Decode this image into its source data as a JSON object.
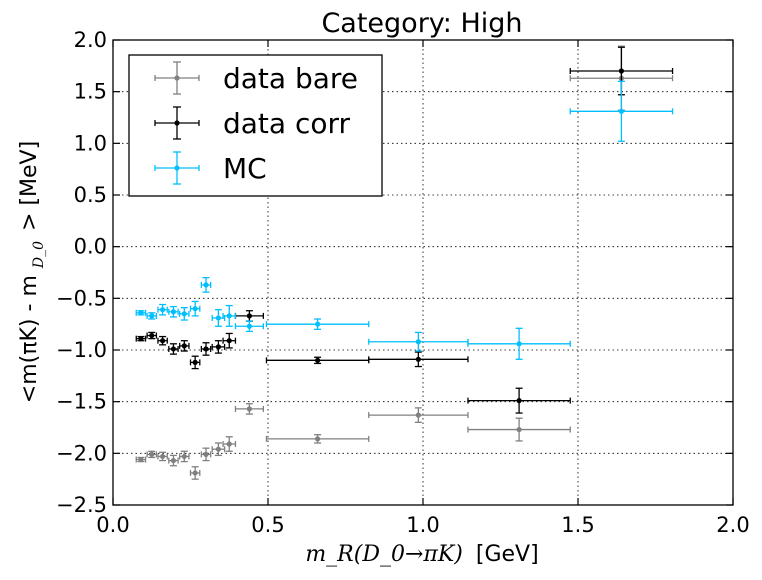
{
  "chart_data": {
    "type": "scatter",
    "title": "Category: High",
    "xlabel_math": "m_R(D_0→πK)",
    "xlabel_unit": "[GeV]",
    "ylabel_prefix": "<m(πK) - m",
    "ylabel_sub": "D_0",
    "ylabel_suffix": "> [MeV]",
    "xlim": [
      0.0,
      2.0
    ],
    "ylim": [
      -2.5,
      2.0
    ],
    "xticks": [
      0.0,
      0.5,
      1.0,
      1.5,
      2.0
    ],
    "xtick_labels": [
      "0.0",
      "0.5",
      "1.0",
      "1.5",
      "2.0"
    ],
    "yticks": [
      -2.5,
      -2.0,
      -1.5,
      -1.0,
      -0.5,
      0.0,
      0.5,
      1.0,
      1.5,
      2.0
    ],
    "ytick_labels": [
      "−2.5",
      "−2.0",
      "−1.5",
      "−1.0",
      "−0.5",
      "0.0",
      "0.5",
      "1.0",
      "1.5",
      "2.0"
    ],
    "grid": true,
    "legend_position": "top-left",
    "series": [
      {
        "name": "data bare",
        "color": "#808080",
        "points": [
          {
            "x": 0.09,
            "y": -2.06,
            "xerr": 0.015,
            "yerr": 0.02
          },
          {
            "x": 0.125,
            "y": -2.01,
            "xerr": 0.015,
            "yerr": 0.03
          },
          {
            "x": 0.16,
            "y": -2.03,
            "xerr": 0.015,
            "yerr": 0.04
          },
          {
            "x": 0.195,
            "y": -2.07,
            "xerr": 0.015,
            "yerr": 0.05
          },
          {
            "x": 0.23,
            "y": -2.03,
            "xerr": 0.015,
            "yerr": 0.05
          },
          {
            "x": 0.265,
            "y": -2.19,
            "xerr": 0.015,
            "yerr": 0.06
          },
          {
            "x": 0.3,
            "y": -2.01,
            "xerr": 0.015,
            "yerr": 0.06
          },
          {
            "x": 0.34,
            "y": -1.96,
            "xerr": 0.02,
            "yerr": 0.06
          },
          {
            "x": 0.375,
            "y": -1.91,
            "xerr": 0.02,
            "yerr": 0.07
          },
          {
            "x": 0.44,
            "y": -1.57,
            "xerr": 0.045,
            "yerr": 0.05
          },
          {
            "x": 0.66,
            "y": -1.86,
            "xerr": 0.165,
            "yerr": 0.04
          },
          {
            "x": 0.985,
            "y": -1.63,
            "xerr": 0.16,
            "yerr": 0.07
          },
          {
            "x": 1.31,
            "y": -1.77,
            "xerr": 0.165,
            "yerr": 0.11
          },
          {
            "x": 1.64,
            "y": 1.63,
            "xerr": 0.165,
            "yerr": 0.31
          }
        ]
      },
      {
        "name": "data corr",
        "color": "#000000",
        "points": [
          {
            "x": 0.09,
            "y": -0.89,
            "xerr": 0.015,
            "yerr": 0.02
          },
          {
            "x": 0.125,
            "y": -0.86,
            "xerr": 0.015,
            "yerr": 0.03
          },
          {
            "x": 0.16,
            "y": -0.91,
            "xerr": 0.015,
            "yerr": 0.04
          },
          {
            "x": 0.195,
            "y": -0.99,
            "xerr": 0.015,
            "yerr": 0.05
          },
          {
            "x": 0.23,
            "y": -0.96,
            "xerr": 0.015,
            "yerr": 0.05
          },
          {
            "x": 0.265,
            "y": -1.12,
            "xerr": 0.015,
            "yerr": 0.06
          },
          {
            "x": 0.3,
            "y": -0.99,
            "xerr": 0.015,
            "yerr": 0.06
          },
          {
            "x": 0.34,
            "y": -0.97,
            "xerr": 0.02,
            "yerr": 0.06
          },
          {
            "x": 0.375,
            "y": -0.91,
            "xerr": 0.02,
            "yerr": 0.07
          },
          {
            "x": 0.44,
            "y": -0.67,
            "xerr": 0.045,
            "yerr": 0.05
          },
          {
            "x": 0.66,
            "y": -1.1,
            "xerr": 0.165,
            "yerr": 0.03
          },
          {
            "x": 0.985,
            "y": -1.09,
            "xerr": 0.16,
            "yerr": 0.07
          },
          {
            "x": 1.31,
            "y": -1.49,
            "xerr": 0.165,
            "yerr": 0.12
          },
          {
            "x": 1.64,
            "y": 1.7,
            "xerr": 0.165,
            "yerr": 0.23
          }
        ]
      },
      {
        "name": "MC",
        "color": "#00bfff",
        "points": [
          {
            "x": 0.09,
            "y": -0.64,
            "xerr": 0.015,
            "yerr": 0.02
          },
          {
            "x": 0.125,
            "y": -0.67,
            "xerr": 0.015,
            "yerr": 0.03
          },
          {
            "x": 0.16,
            "y": -0.61,
            "xerr": 0.015,
            "yerr": 0.05
          },
          {
            "x": 0.195,
            "y": -0.63,
            "xerr": 0.015,
            "yerr": 0.05
          },
          {
            "x": 0.23,
            "y": -0.65,
            "xerr": 0.015,
            "yerr": 0.06
          },
          {
            "x": 0.265,
            "y": -0.6,
            "xerr": 0.015,
            "yerr": 0.07
          },
          {
            "x": 0.3,
            "y": -0.37,
            "xerr": 0.015,
            "yerr": 0.07
          },
          {
            "x": 0.34,
            "y": -0.69,
            "xerr": 0.02,
            "yerr": 0.08
          },
          {
            "x": 0.375,
            "y": -0.67,
            "xerr": 0.02,
            "yerr": 0.1
          },
          {
            "x": 0.44,
            "y": -0.77,
            "xerr": 0.045,
            "yerr": 0.05
          },
          {
            "x": 0.66,
            "y": -0.75,
            "xerr": 0.165,
            "yerr": 0.05
          },
          {
            "x": 0.985,
            "y": -0.92,
            "xerr": 0.16,
            "yerr": 0.09
          },
          {
            "x": 1.31,
            "y": -0.94,
            "xerr": 0.165,
            "yerr": 0.15
          },
          {
            "x": 1.64,
            "y": 1.31,
            "xerr": 0.165,
            "yerr": 0.29
          }
        ]
      }
    ]
  }
}
